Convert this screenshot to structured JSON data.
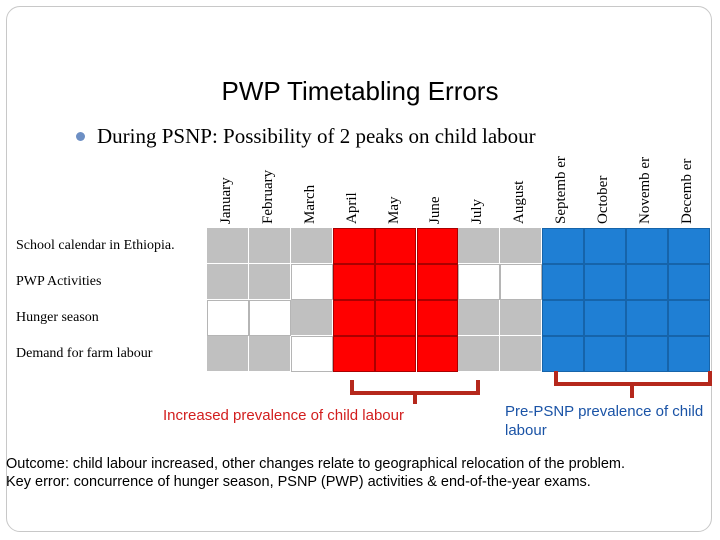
{
  "title": "PWP Timetabling Errors",
  "bullet": "During PSNP: Possibility of 2 peaks on child labour",
  "months": [
    "January",
    "February",
    "March",
    "April",
    "May",
    "June",
    "July",
    "August",
    "Septemb er",
    "October",
    "Novemb er",
    "Decemb er"
  ],
  "rows": [
    {
      "label": "School calendar in Ethiopia.",
      "cells": [
        "grey",
        "grey",
        "grey",
        "red",
        "red",
        "red",
        "grey",
        "grey",
        "blue",
        "blue",
        "blue",
        "blue"
      ]
    },
    {
      "label": "PWP Activities",
      "cells": [
        "grey",
        "grey",
        "white",
        "red",
        "red",
        "red",
        "white",
        "white",
        "blue",
        "blue",
        "blue",
        "blue"
      ]
    },
    {
      "label": "Hunger season",
      "cells": [
        "white",
        "white",
        "grey",
        "red",
        "red",
        "red",
        "grey",
        "grey",
        "blue",
        "blue",
        "blue",
        "blue"
      ]
    },
    {
      "label": "Demand for farm labour",
      "cells": [
        "grey",
        "grey",
        "white",
        "red",
        "red",
        "red",
        "grey",
        "grey",
        "blue",
        "blue",
        "blue",
        "blue"
      ]
    }
  ],
  "annotations": {
    "increased": "Increased prevalence of child labour",
    "pre_psnp": "Pre-PSNP prevalence of child labour"
  },
  "footer": {
    "outcome": "Outcome: child labour increased, other changes relate to geographical relocation of the problem.",
    "key_error": "Key error: concurrence of hunger season, PSNP (PWP) activities & end-of-the-year exams."
  },
  "colors": {
    "red": "#ff0000",
    "blue": "#1f7fd4",
    "grey": "#c0c0c0",
    "bracket": "#b5281c"
  }
}
